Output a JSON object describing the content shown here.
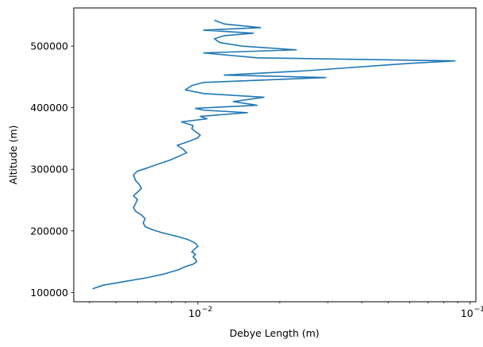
{
  "chart_data": {
    "type": "line",
    "title": "",
    "xlabel": "Debye Length (m)",
    "ylabel": "Altitude (m)",
    "xscale": "log",
    "xlim": [
      0.0035,
      0.105
    ],
    "ylim": [
      85000,
      562000
    ],
    "grid": false,
    "legend": "none",
    "x_ticks": [
      {
        "value": 0.01,
        "label": "10",
        "exp": "−2"
      },
      {
        "value": 0.1,
        "label": "10",
        "exp": "−1"
      }
    ],
    "y_ticks": [
      {
        "value": 100000,
        "label": "100000"
      },
      {
        "value": 200000,
        "label": "200000"
      },
      {
        "value": 300000,
        "label": "300000"
      },
      {
        "value": 400000,
        "label": "400000"
      },
      {
        "value": 500000,
        "label": "500000"
      }
    ],
    "series": [
      {
        "color": "#1f77b4",
        "points": [
          [
            0.0041,
            106000
          ],
          [
            0.0045,
            112000
          ],
          [
            0.0054,
            118000
          ],
          [
            0.0065,
            124000
          ],
          [
            0.0075,
            130000
          ],
          [
            0.0085,
            137000
          ],
          [
            0.009,
            142000
          ],
          [
            0.0096,
            146000
          ],
          [
            0.0099,
            150000
          ],
          [
            0.0098,
            154000
          ],
          [
            0.0096,
            158000
          ],
          [
            0.0098,
            162000
          ],
          [
            0.0095,
            166000
          ],
          [
            0.0097,
            170000
          ],
          [
            0.01,
            175000
          ],
          [
            0.0098,
            180000
          ],
          [
            0.0092,
            186000
          ],
          [
            0.0084,
            191000
          ],
          [
            0.0074,
            197000
          ],
          [
            0.0068,
            202000
          ],
          [
            0.0064,
            207000
          ],
          [
            0.0063,
            213000
          ],
          [
            0.0064,
            220000
          ],
          [
            0.0062,
            226000
          ],
          [
            0.0059,
            232000
          ],
          [
            0.0058,
            238000
          ],
          [
            0.0059,
            244000
          ],
          [
            0.006,
            251000
          ],
          [
            0.0058,
            257000
          ],
          [
            0.006,
            263000
          ],
          [
            0.0062,
            269000
          ],
          [
            0.0061,
            275000
          ],
          [
            0.0059,
            282000
          ],
          [
            0.0058,
            291000
          ],
          [
            0.006,
            297000
          ],
          [
            0.0065,
            302000
          ],
          [
            0.0072,
            309000
          ],
          [
            0.0079,
            315000
          ],
          [
            0.0085,
            321000
          ],
          [
            0.0091,
            327000
          ],
          [
            0.0088,
            333000
          ],
          [
            0.0084,
            339000
          ],
          [
            0.0092,
            345000
          ],
          [
            0.01,
            351000
          ],
          [
            0.0102,
            356000
          ],
          [
            0.0098,
            361000
          ],
          [
            0.0095,
            366000
          ],
          [
            0.0096,
            371000
          ],
          [
            0.0087,
            377000
          ],
          [
            0.0108,
            382000
          ],
          [
            0.0102,
            386000
          ],
          [
            0.0152,
            392000
          ],
          [
            0.0105,
            396000
          ],
          [
            0.0098,
            399000
          ],
          [
            0.0165,
            404000
          ],
          [
            0.0135,
            410000
          ],
          [
            0.0175,
            417000
          ],
          [
            0.0105,
            423000
          ],
          [
            0.009,
            429000
          ],
          [
            0.0095,
            436000
          ],
          [
            0.0105,
            441000
          ],
          [
            0.0295,
            449000
          ],
          [
            0.0125,
            453000
          ],
          [
            0.025,
            460000
          ],
          [
            0.06,
            472000
          ],
          [
            0.088,
            476000
          ],
          [
            0.0165,
            481000
          ],
          [
            0.0105,
            489000
          ],
          [
            0.023,
            494000
          ],
          [
            0.0145,
            500000
          ],
          [
            0.012,
            506000
          ],
          [
            0.0115,
            512000
          ],
          [
            0.0125,
            517000
          ],
          [
            0.016,
            521000
          ],
          [
            0.0105,
            526000
          ],
          [
            0.017,
            530000
          ],
          [
            0.0125,
            536000
          ],
          [
            0.0115,
            542000
          ]
        ]
      }
    ]
  }
}
